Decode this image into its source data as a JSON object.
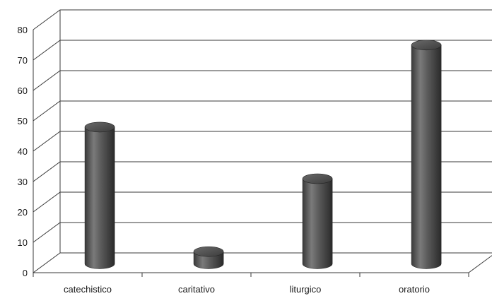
{
  "chart_data": {
    "type": "bar",
    "title": "",
    "xlabel": "",
    "ylabel": "",
    "categories": [
      "catechistico",
      "caritativo",
      "liturgico",
      "oratorio"
    ],
    "values": [
      45,
      4,
      28,
      72
    ],
    "ylim": [
      0,
      80
    ],
    "yticks": [
      "0",
      "10",
      "20",
      "30",
      "40",
      "50",
      "60",
      "70",
      "80"
    ],
    "grid": true,
    "legend": "none",
    "style": "3d-cylinder",
    "bar_color": "#4a4a4a"
  }
}
